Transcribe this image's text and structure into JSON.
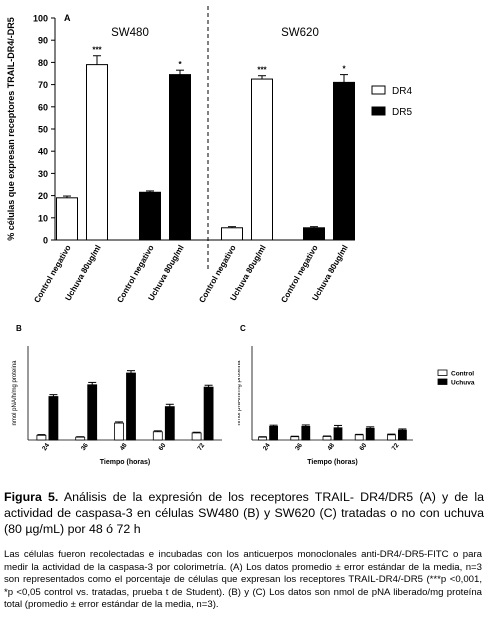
{
  "chart_data": [
    {
      "type": "bar",
      "panel_label": "A",
      "groups": [
        "SW480",
        "SW620"
      ],
      "ylabel": "% células que expresan receptores TRAIL-DR4/-DR5",
      "ylim": [
        0,
        100
      ],
      "yticks": [
        "0",
        "10",
        "20",
        "30",
        "40",
        "50",
        "60",
        "70",
        "80",
        "90",
        "100"
      ],
      "categories": [
        "Control negativo",
        "Uchuva 80ug/ml",
        "Control negativo",
        "Uchuva 80ug/ml",
        "Control negativo",
        "Uchuva 80ug/ml",
        "Control negativo",
        "Uchuva 80ug/ml"
      ],
      "series": [
        {
          "name": "DR4",
          "color": "#ffffff",
          "values": [
            19,
            79,
            null,
            null,
            5.5,
            72.5,
            null,
            null
          ],
          "errors": [
            0.8,
            4,
            null,
            null,
            0.5,
            1.5,
            null,
            null
          ]
        },
        {
          "name": "DR5",
          "color": "#000000",
          "values": [
            null,
            null,
            21.5,
            74.5,
            null,
            null,
            5.5,
            71
          ],
          "errors": [
            null,
            null,
            0.6,
            2,
            null,
            null,
            0.5,
            3.5
          ]
        }
      ],
      "annotations": [
        "***",
        "*",
        "***",
        "*"
      ],
      "legend": [
        "DR4",
        "DR5"
      ],
      "legend_position": "right",
      "grid": false
    },
    {
      "type": "bar",
      "panel_label": "B",
      "xlabel": "Tiempo (horas)",
      "ylabel": "nmol pNA/h/mg proteína",
      "categories": [
        "24",
        "36",
        "48",
        "60",
        "72"
      ],
      "series": [
        {
          "name": "Control",
          "color": "#ffffff",
          "values": [
            0.2,
            0.12,
            0.72,
            0.35,
            0.3
          ],
          "errors": [
            0.03,
            0.02,
            0.05,
            0.04,
            0.03
          ]
        },
        {
          "name": "Uchuva",
          "color": "#000000",
          "values": [
            1.85,
            2.35,
            2.85,
            1.42,
            2.25
          ],
          "errors": [
            0.08,
            0.1,
            0.1,
            0.1,
            0.08
          ]
        }
      ],
      "ylim": [
        0,
        4
      ],
      "grid": false
    },
    {
      "type": "bar",
      "panel_label": "C",
      "xlabel": "Tiempo (horas)",
      "ylabel": "nmol pNA/h/mg proteína",
      "categories": [
        "24",
        "36",
        "48",
        "60",
        "72"
      ],
      "series": [
        {
          "name": "Control",
          "color": "#ffffff",
          "values": [
            0.12,
            0.14,
            0.15,
            0.22,
            0.22
          ],
          "errors": [
            0.02,
            0.02,
            0.02,
            0.02,
            0.03
          ]
        },
        {
          "name": "Uchuva",
          "color": "#000000",
          "values": [
            0.58,
            0.58,
            0.52,
            0.5,
            0.42
          ],
          "errors": [
            0.05,
            0.06,
            0.1,
            0.06,
            0.05
          ]
        }
      ],
      "legend": [
        "Control",
        "Uchuva"
      ],
      "legend_position": "right",
      "ylim": [
        0,
        4
      ],
      "grid": false
    }
  ],
  "caption": {
    "figure_label": "Figura 5.",
    "text": "Análisis de la expresión de los receptores TRAIL- DR4/DR5 (A) y de la actividad de caspasa-3 en células SW480 (B) y SW620 (C) tratadas o no con uchuva (80 µg/mL) por 48 ó 72 h"
  },
  "legend_text": "Las células fueron recolectadas e incubadas con los anticuerpos monoclonales anti-DR4/-DR5-FITC o para medir la actividad de la caspasa-3 por colorimetría. (A) Los datos promedio ± error estándar de la media, n=3 son representados como el porcentaje de células que expresan los receptores TRAIL-DR4/-DR5 (***p <0,001, *p <0,05 control vs. tratadas, prueba t de Student). (B) y (C) Los datos son nmol de pNA liberado/mg proteína total (promedio ± error estándar de la media, n=3)."
}
